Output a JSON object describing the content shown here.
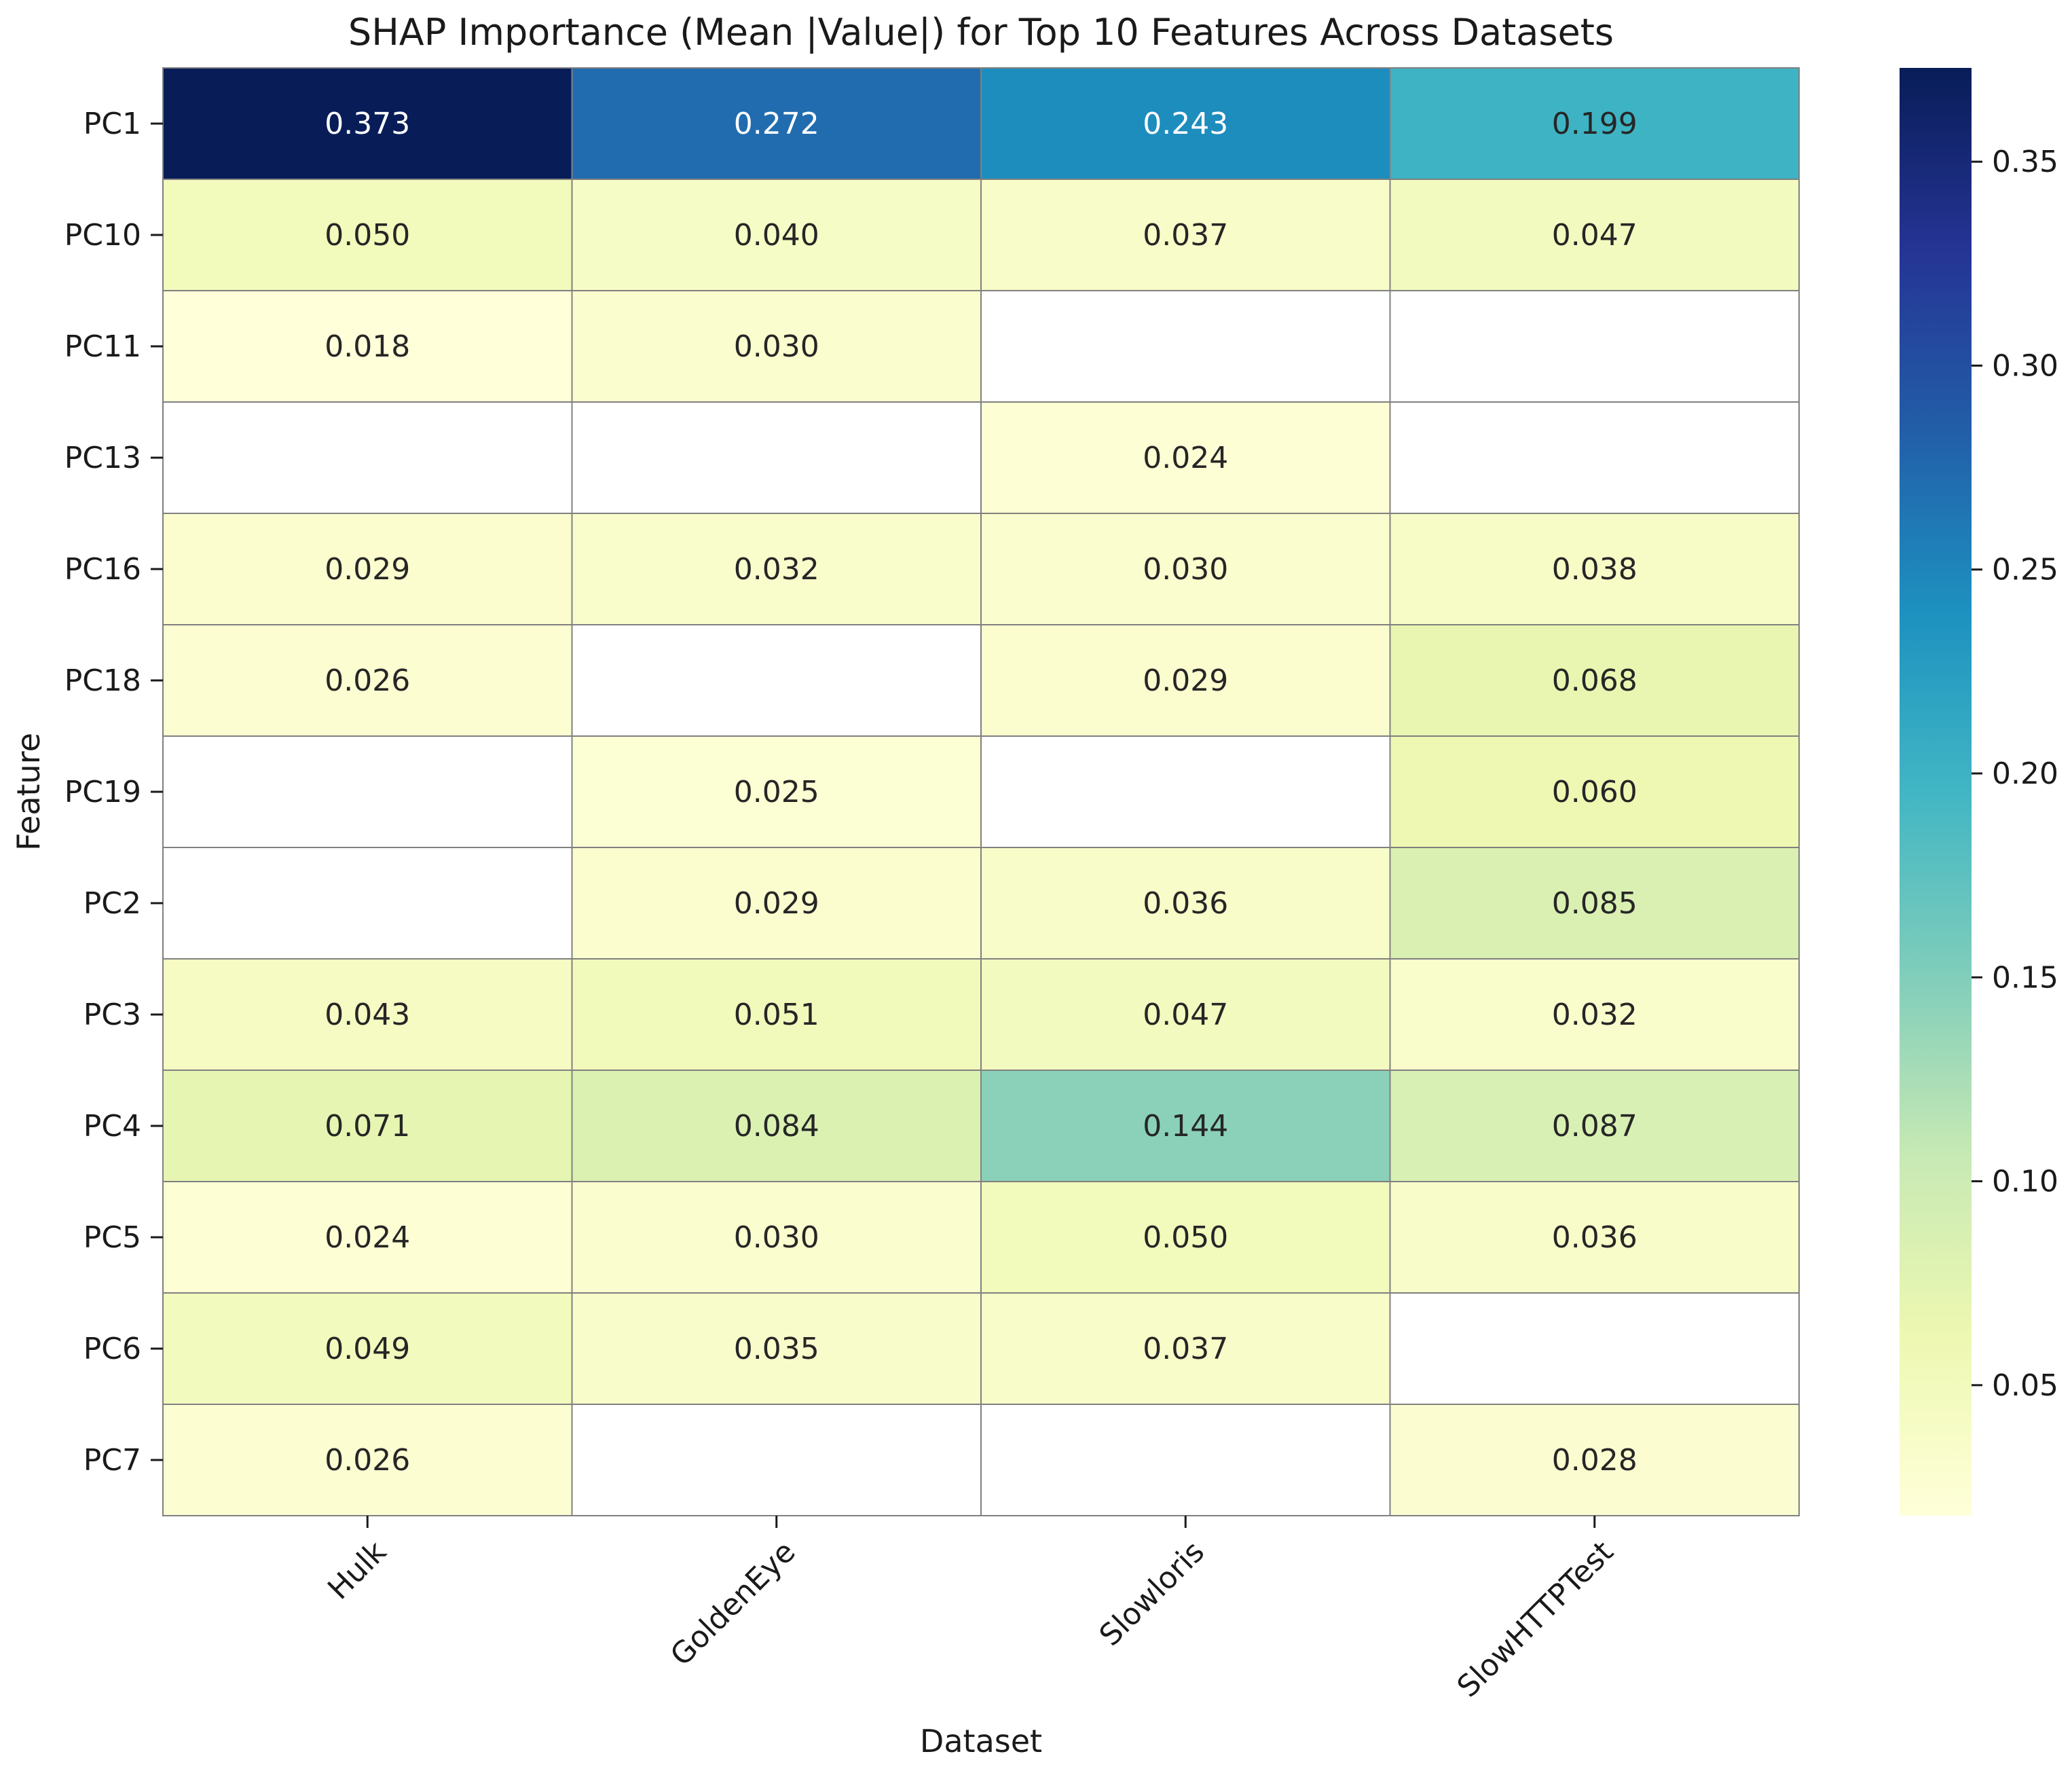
{
  "chart_data": {
    "type": "heatmap",
    "title": "SHAP Importance (Mean |Value|) for Top 10 Features Across Datasets",
    "xlabel": "Dataset",
    "ylabel": "Feature",
    "columns": [
      "Hulk",
      "GoldenEye",
      "Slowloris",
      "SlowHTTPTest"
    ],
    "rows": [
      "PC1",
      "PC10",
      "PC11",
      "PC13",
      "PC16",
      "PC18",
      "PC19",
      "PC2",
      "PC3",
      "PC4",
      "PC5",
      "PC6",
      "PC7"
    ],
    "values": [
      [
        0.373,
        0.272,
        0.243,
        0.199
      ],
      [
        0.05,
        0.04,
        0.037,
        0.047
      ],
      [
        0.018,
        0.03,
        null,
        null
      ],
      [
        null,
        null,
        0.024,
        null
      ],
      [
        0.029,
        0.032,
        0.03,
        0.038
      ],
      [
        0.026,
        null,
        0.029,
        0.068
      ],
      [
        null,
        0.025,
        null,
        0.06
      ],
      [
        null,
        0.029,
        0.036,
        0.085
      ],
      [
        0.043,
        0.051,
        0.047,
        0.032
      ],
      [
        0.071,
        0.084,
        0.144,
        0.087
      ],
      [
        0.024,
        0.03,
        0.05,
        0.036
      ],
      [
        0.049,
        0.035,
        0.037,
        null
      ],
      [
        0.026,
        null,
        null,
        0.028
      ]
    ],
    "value_labels": [
      [
        "0.373",
        "0.272",
        "0.243",
        "0.199"
      ],
      [
        "0.050",
        "0.040",
        "0.037",
        "0.047"
      ],
      [
        "0.018",
        "0.030",
        "",
        ""
      ],
      [
        "",
        "",
        "0.024",
        ""
      ],
      [
        "0.029",
        "0.032",
        "0.030",
        "0.038"
      ],
      [
        "0.026",
        "",
        "0.029",
        "0.068"
      ],
      [
        "",
        "0.025",
        "",
        "0.060"
      ],
      [
        "",
        "0.029",
        "0.036",
        "0.085"
      ],
      [
        "0.043",
        "0.051",
        "0.047",
        "0.032"
      ],
      [
        "0.071",
        "0.084",
        "0.144",
        "0.087"
      ],
      [
        "0.024",
        "0.030",
        "0.050",
        "0.036"
      ],
      [
        "0.049",
        "0.035",
        "0.037",
        ""
      ],
      [
        "0.026",
        "",
        "",
        "0.028"
      ]
    ],
    "colormap": "YlGnBu",
    "color_range": [
      0.018,
      0.373
    ],
    "missing_color": "#ffffff",
    "cell_border_color": "#808080",
    "colorbar": {
      "ticks": [
        0.05,
        0.1,
        0.15,
        0.2,
        0.25,
        0.3,
        0.35
      ],
      "tick_labels": [
        "0.05",
        "0.10",
        "0.15",
        "0.20",
        "0.25",
        "0.30",
        "0.35"
      ]
    },
    "colors": {
      "ylgnbu_stops": [
        "#ffffd9",
        "#edf8b1",
        "#c7e9b4",
        "#7fcdbb",
        "#41b6c4",
        "#1d91c0",
        "#225ea8",
        "#253494",
        "#081d58"
      ]
    }
  }
}
